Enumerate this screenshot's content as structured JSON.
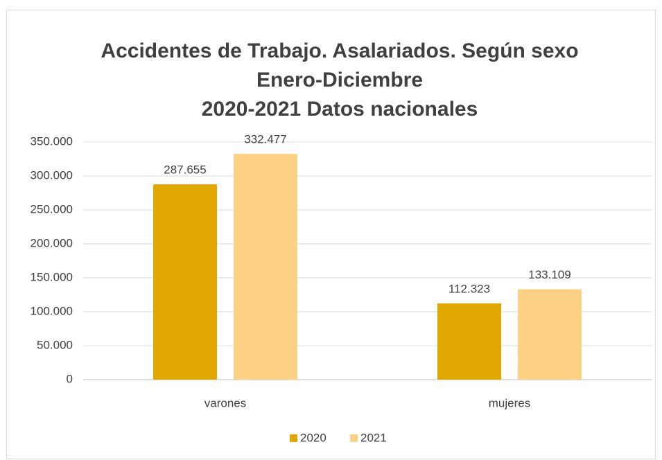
{
  "chart_data": {
    "type": "bar",
    "title": [
      "Accidentes de Trabajo. Asalariados. Según sexo",
      "Enero-Diciembre",
      "2020-2021 Datos nacionales"
    ],
    "categories": [
      "varones",
      "mujeres"
    ],
    "series": [
      {
        "name": "2020",
        "color": "#E0A800",
        "values": [
          287655,
          112323
        ],
        "value_labels": [
          "287.655",
          "112.323"
        ]
      },
      {
        "name": "2021",
        "color": "#FFD185",
        "values": [
          332477,
          133109
        ],
        "value_labels": [
          "332.477",
          "133.109"
        ]
      }
    ],
    "ylim": [
      0,
      350000
    ],
    "yticks": [
      0,
      {
        "value": 50000,
        "label": "50.000"
      },
      {
        "value": 100000,
        "label": "100.000"
      },
      {
        "value": 150000,
        "label": "150.000"
      },
      {
        "value": 200000,
        "label": "200.000"
      },
      {
        "value": 250000,
        "label": "250.000"
      },
      {
        "value": 300000,
        "label": "300.000"
      },
      {
        "value": 350000,
        "label": "350.000"
      }
    ],
    "grid": true,
    "legend": "bottom"
  }
}
